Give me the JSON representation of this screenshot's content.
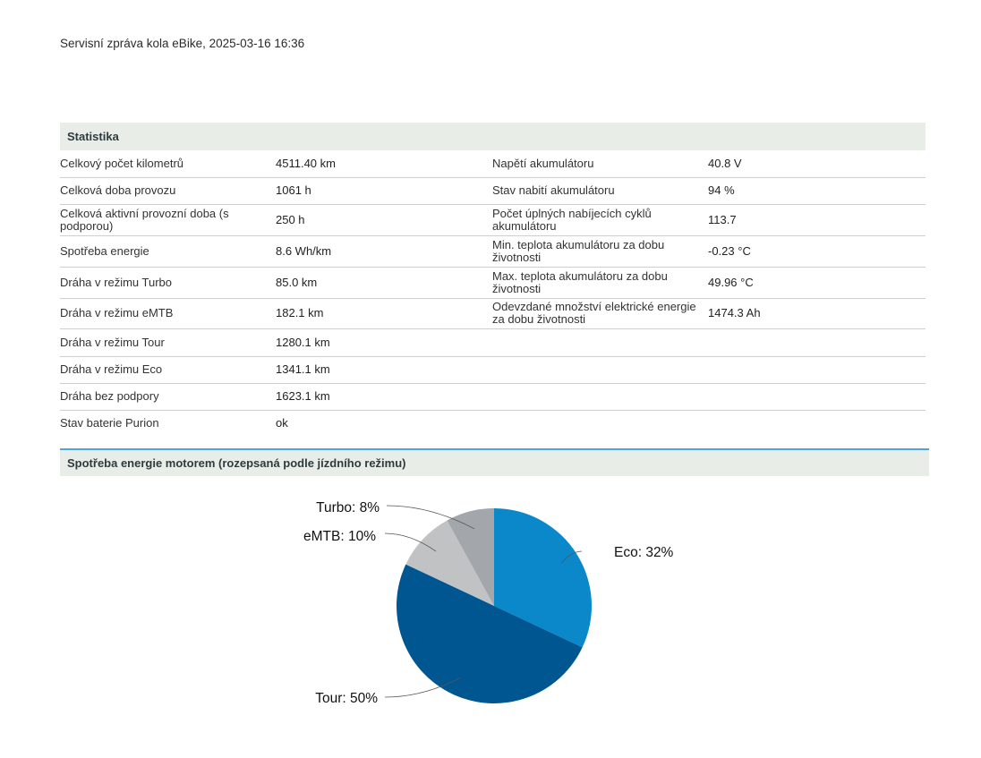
{
  "report": {
    "title": "Servisní zpráva kola eBike, 2025-03-16 16:36"
  },
  "stats": {
    "header": "Statistika",
    "rows": [
      {
        "l1": "Celkový počet kilometrů",
        "v1": "4511.40 km",
        "l2": "Napětí akumulátoru",
        "v2": "40.8 V"
      },
      {
        "l1": "Celková doba provozu",
        "v1": "1061 h",
        "l2": "Stav nabití akumulátoru",
        "v2": "94 %"
      },
      {
        "l1": "Celková aktivní provozní doba (s podporou)",
        "v1": "250 h",
        "l2": "Počet úplných nabíjecích cyklů akumulátoru",
        "v2": "113.7"
      },
      {
        "l1": "Spotřeba energie",
        "v1": "8.6 Wh/km",
        "l2": "Min. teplota akumulátoru za dobu životnosti",
        "v2": "-0.23 °C"
      },
      {
        "l1": "Dráha v režimu Turbo",
        "v1": "85.0 km",
        "l2": "Max. teplota akumulátoru za dobu životnosti",
        "v2": "49.96 °C"
      },
      {
        "l1": "Dráha v režimu eMTB",
        "v1": "182.1 km",
        "l2": "Odevzdané množství elektrické energie za dobu životnosti",
        "v2": "1474.3 Ah"
      },
      {
        "l1": "Dráha v režimu Tour",
        "v1": "1280.1 km",
        "l2": "",
        "v2": ""
      },
      {
        "l1": "Dráha v režimu Eco",
        "v1": "1341.1 km",
        "l2": "",
        "v2": ""
      },
      {
        "l1": "Dráha bez podpory",
        "v1": "1623.1 km",
        "l2": "",
        "v2": ""
      },
      {
        "l1": "Stav baterie Purion",
        "v1": "ok",
        "l2": "",
        "v2": ""
      }
    ]
  },
  "energy_section": {
    "header": "Spotřeba energie motorem (rozepsaná podle jízdního režimu)"
  },
  "chart_data": {
    "type": "pie",
    "slices": [
      {
        "label": "Eco: 32%",
        "value": 32,
        "color": "#0a88c9"
      },
      {
        "label": "Tour: 50%",
        "value": 50,
        "color": "#005691"
      },
      {
        "label": "eMTB: 10%",
        "value": 10,
        "color": "#c0c2c4"
      },
      {
        "label": "Turbo: 8%",
        "value": 8,
        "color": "#a3a6aa"
      }
    ]
  }
}
